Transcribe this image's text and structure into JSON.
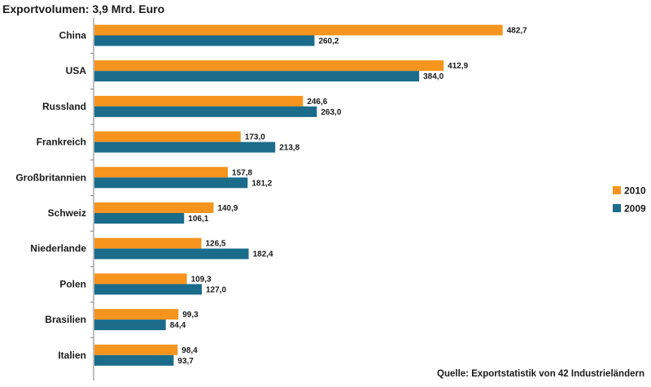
{
  "chart_data": {
    "type": "bar",
    "orientation": "horizontal",
    "title": "Exportvolumen: 3,9 Mrd. Euro",
    "source": "Quelle: Exportstatistik von 42 Industrieländern",
    "categories": [
      "China",
      "USA",
      "Russland",
      "Frankreich",
      "Großbritannien",
      "Schweiz",
      "Niederlande",
      "Polen",
      "Brasilien",
      "Italien"
    ],
    "series": [
      {
        "name": "2010",
        "color": "#F7941D",
        "values": [
          482.7,
          412.9,
          246.6,
          173.0,
          157.8,
          140.9,
          126.5,
          109.3,
          99.3,
          98.4
        ],
        "labels": [
          "482,7",
          "412,9",
          "246,6",
          "173,0",
          "157,8",
          "140,9",
          "126,5",
          "109,3",
          "99,3",
          "98,4"
        ]
      },
      {
        "name": "2009",
        "color": "#1B6C8A",
        "values": [
          260.2,
          384.0,
          263.0,
          213.8,
          181.2,
          106.1,
          182.4,
          127.0,
          84.4,
          93.7
        ],
        "labels": [
          "260,2",
          "384,0",
          "263,0",
          "213,8",
          "181,2",
          "106,1",
          "182,4",
          "127,0",
          "84,4",
          "93,7"
        ]
      }
    ],
    "xlim": [
      0,
      500
    ],
    "grid": false,
    "legend": "right"
  }
}
